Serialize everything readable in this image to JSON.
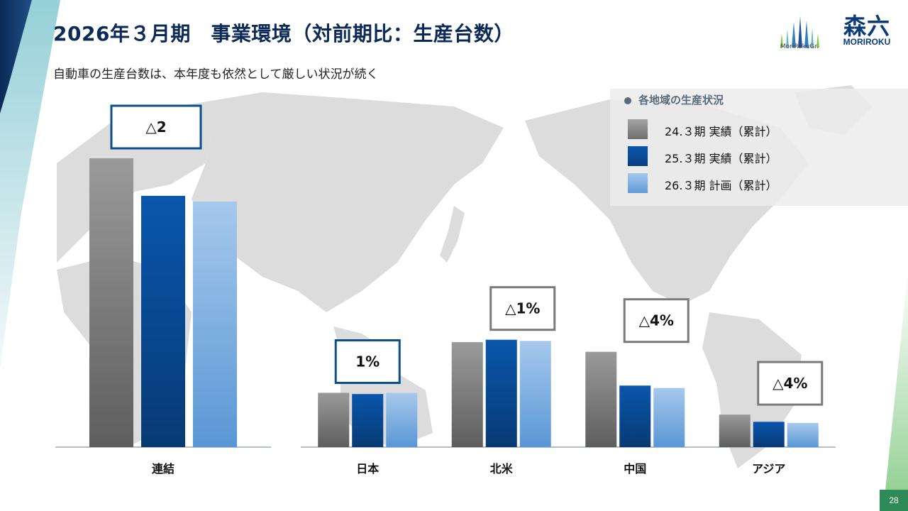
{
  "title": "2026年３月期　事業環境（対前期比：生産台数）",
  "subtitle": "自動車の生産台数は、本年度も依然として厳しい状況が続く",
  "logo_text": "MoriRokuGr.",
  "brand": {
    "kanji": "森六",
    "roman": "MORIROKU"
  },
  "page_number": "28",
  "legend": {
    "title": "各地域の生産状況",
    "items": [
      {
        "label": "24.３期 実績（累計）",
        "color": "#6e6e6e"
      },
      {
        "label": "25.３期 実績（累計）",
        "color": "#0a4a94"
      },
      {
        "label": "26.３期 計画（累計）",
        "color": "#7fb0e2"
      }
    ]
  },
  "colors": {
    "title": "#0b2a57",
    "gray": "#6e6e6e",
    "blue": "#0a4a94",
    "lightblue": "#7fb0e2",
    "box_blue": "#0b4f8c",
    "box_gray": "#7a7a7a",
    "page_badge": "#2e8b57"
  },
  "chart_data": [
    {
      "type": "bar",
      "categories": [
        "連結"
      ],
      "series": [
        {
          "name": "24.３期 実績（累計）",
          "values": [
            100
          ]
        },
        {
          "name": "25.３期 実績（累計）",
          "values": [
            87
          ]
        },
        {
          "name": "26.３期 計画（累計）",
          "values": [
            85
          ]
        }
      ],
      "ylim": [
        0,
        100
      ],
      "annotations": [
        {
          "category": "連結",
          "text": "△2",
          "border": "blue"
        }
      ]
    },
    {
      "type": "bar",
      "categories": [
        "日本",
        "北米",
        "中国",
        "アジア"
      ],
      "series": [
        {
          "name": "24.３期 実績（累計）",
          "values": [
            45,
            87,
            79,
            27
          ]
        },
        {
          "name": "25.３期 実績（累計）",
          "values": [
            44,
            89,
            51,
            21
          ]
        },
        {
          "name": "26.３期 計画（累計）",
          "values": [
            45,
            88,
            49,
            20
          ]
        }
      ],
      "ylim": [
        0,
        100
      ],
      "annotations": [
        {
          "category": "日本",
          "text": "1%",
          "border": "blue"
        },
        {
          "category": "北米",
          "text": "△1%",
          "border": "gray"
        },
        {
          "category": "中国",
          "text": "△4%",
          "border": "gray"
        },
        {
          "category": "アジア",
          "text": "△4%",
          "border": "gray"
        }
      ]
    }
  ]
}
